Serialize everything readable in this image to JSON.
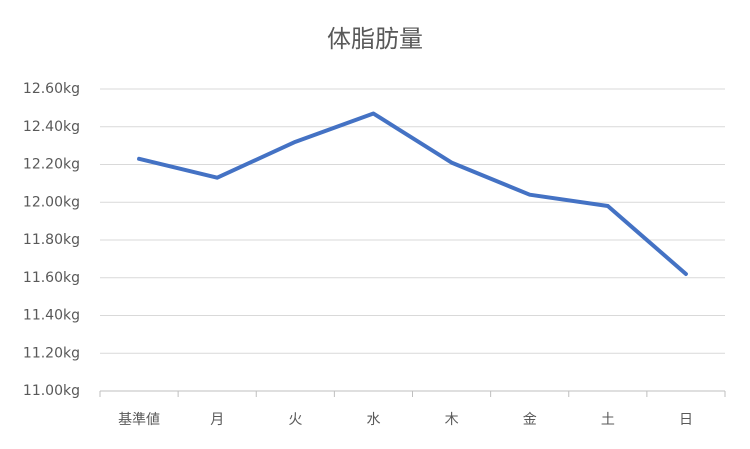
{
  "chart_data": {
    "type": "line",
    "title": "体脂肪量",
    "categories": [
      "基準値",
      "月",
      "火",
      "水",
      "木",
      "金",
      "土",
      "日"
    ],
    "series": [
      {
        "name": "体脂肪量",
        "color": "#4472c4",
        "values": [
          12.23,
          12.13,
          12.32,
          12.47,
          12.21,
          12.04,
          11.98,
          11.62
        ]
      }
    ],
    "ylim": [
      11.0,
      12.6
    ],
    "yticks": [
      {
        "value": 11.0,
        "label": "11.00kg"
      },
      {
        "value": 11.2,
        "label": "11.20kg"
      },
      {
        "value": 11.4,
        "label": "11.40kg"
      },
      {
        "value": 11.6,
        "label": "11.60kg"
      },
      {
        "value": 11.8,
        "label": "11.80kg"
      },
      {
        "value": 12.0,
        "label": "12.00kg"
      },
      {
        "value": 12.2,
        "label": "12.20kg"
      },
      {
        "value": 12.4,
        "label": "12.40kg"
      },
      {
        "value": 12.6,
        "label": "12.60kg"
      }
    ],
    "grid": true
  }
}
